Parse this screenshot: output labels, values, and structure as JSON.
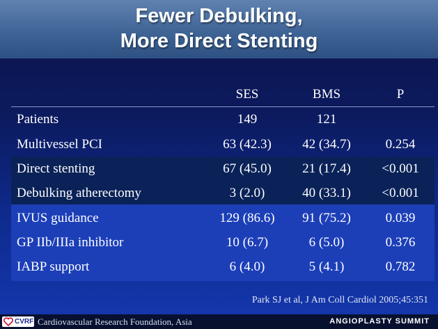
{
  "title": {
    "line1": "Fewer Debulking,",
    "line2": "More Direct Stenting"
  },
  "table": {
    "headers": [
      "",
      "SES",
      "BMS",
      "P"
    ],
    "rows": [
      [
        "Patients",
        "149",
        "121",
        ""
      ],
      [
        "Multivessel PCI",
        "63 (42.3)",
        "42 (34.7)",
        "0.254"
      ],
      [
        "Direct stenting",
        "67 (45.0)",
        "21 (17.4)",
        "<0.001"
      ],
      [
        "Debulking atherectomy",
        "3 (2.0)",
        "40 (33.1)",
        "<0.001"
      ],
      [
        "IVUS guidance",
        "129 (86.6)",
        "91 (75.2)",
        "0.039"
      ],
      [
        "GP IIb/IIIa inhibitor",
        "10 (6.7)",
        "6 (5.0)",
        "0.376"
      ],
      [
        "IABP support",
        "6 (4.0)",
        "5 (4.1)",
        "0.782"
      ]
    ]
  },
  "citation": "Park SJ et al, J Am Coll Cardiol 2005;45:351",
  "footer": {
    "logo_text": "CVRF",
    "organization": "Cardiovascular Research Foundation, Asia",
    "event": "ANGIOPLASTY SUMMIT"
  },
  "colors": {
    "title_bar": "#3f6496",
    "background": "#0c1a5e",
    "highlight_band": "#0a2258",
    "lower_band": "#1c3fb8",
    "text": "#ffffff"
  }
}
